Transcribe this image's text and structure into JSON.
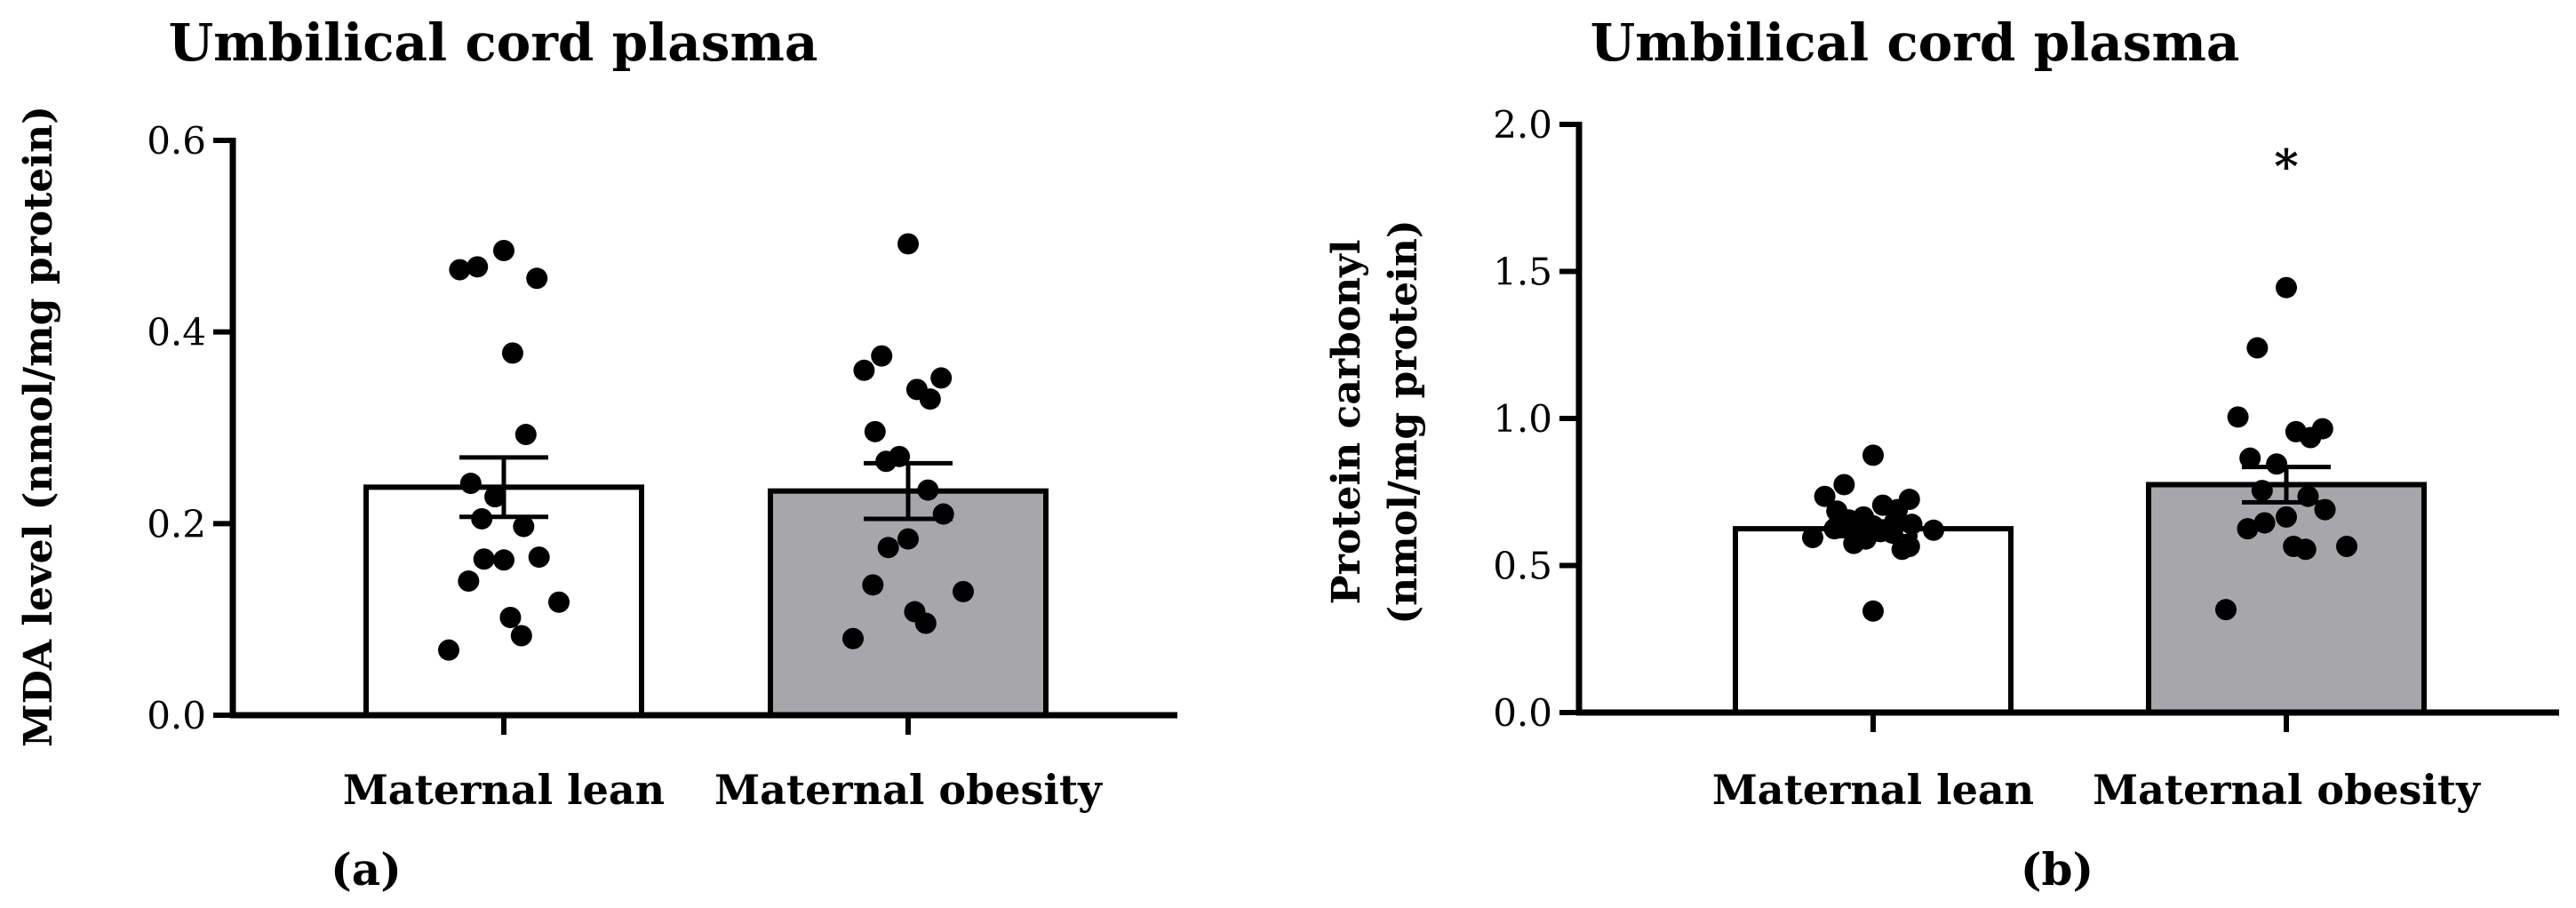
{
  "colors": {
    "lean_fill": "#ffffff",
    "obesity_fill": "#a6a6ab",
    "ink": "#000000"
  },
  "chart_data": [
    {
      "type": "bar",
      "panel": "(a)",
      "title": "Umbilical cord plasma",
      "xlabel": "",
      "ylabel": "MDA level (nmol/mg protein)",
      "ylabel_lines": [
        "MDA level (nmol/mg protein)"
      ],
      "ylim": [
        0,
        0.6
      ],
      "yticks": [
        0.0,
        0.2,
        0.4,
        0.6
      ],
      "ytick_labels": [
        "0.0",
        "0.2",
        "0.4",
        "0.6"
      ],
      "categories": [
        "Maternal lean",
        "Maternal obesity"
      ],
      "values": [
        0.238,
        0.234
      ],
      "error": [
        0.031,
        0.029
      ],
      "significance": [
        "",
        ""
      ],
      "points": [
        [
          0.485,
          0.468,
          0.465,
          0.456,
          0.378,
          0.293,
          0.242,
          0.228,
          0.205,
          0.197,
          0.165,
          0.162,
          0.163,
          0.14,
          0.118,
          0.102,
          0.083,
          0.068
        ],
        [
          0.492,
          0.375,
          0.36,
          0.352,
          0.34,
          0.33,
          0.296,
          0.27,
          0.265,
          0.235,
          0.21,
          0.184,
          0.175,
          0.136,
          0.129,
          0.108,
          0.096,
          0.08
        ]
      ]
    },
    {
      "type": "bar",
      "panel": "(b)",
      "title": "Umbilical cord plasma",
      "xlabel": "",
      "ylabel": "Protein carbonyl (nmol/mg protein)",
      "ylabel_lines": [
        "Protein carbonyl",
        "(nmol/mg protein)"
      ],
      "ylim": [
        0,
        2.0
      ],
      "yticks": [
        0.0,
        0.5,
        1.0,
        1.5,
        2.0
      ],
      "ytick_labels": [
        "0.0",
        "0.5",
        "1.0",
        "1.5",
        "2.0"
      ],
      "categories": [
        "Maternal lean",
        "Maternal obesity"
      ],
      "values": [
        0.625,
        0.775
      ],
      "error": [
        0.025,
        0.06
      ],
      "significance": [
        "",
        "*"
      ],
      "points": [
        [
          0.875,
          0.775,
          0.735,
          0.725,
          0.705,
          0.69,
          0.685,
          0.665,
          0.655,
          0.65,
          0.64,
          0.635,
          0.63,
          0.625,
          0.62,
          0.615,
          0.61,
          0.595,
          0.59,
          0.575,
          0.565,
          0.555,
          0.345
        ],
        [
          1.445,
          1.24,
          1.005,
          0.965,
          0.955,
          0.935,
          0.865,
          0.845,
          0.755,
          0.735,
          0.69,
          0.665,
          0.645,
          0.625,
          0.565,
          0.565,
          0.555,
          0.35
        ]
      ]
    }
  ]
}
